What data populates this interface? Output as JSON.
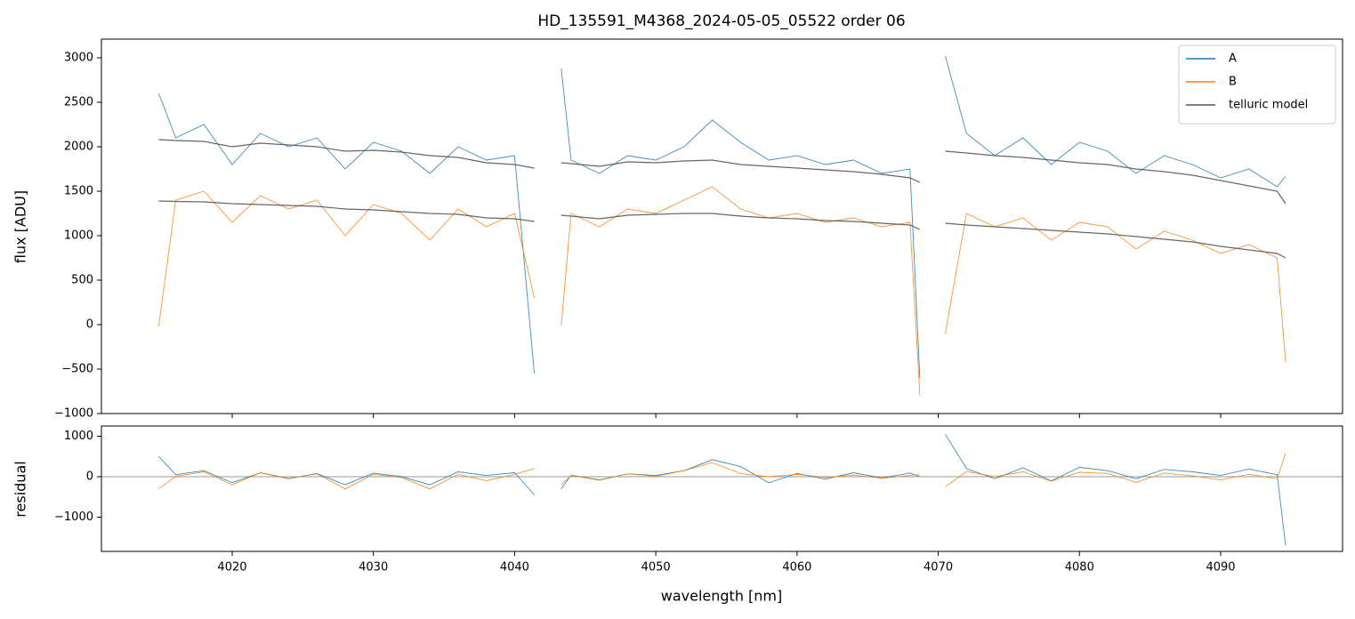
{
  "chart_data": [
    {
      "type": "line",
      "title": "HD_135591_M4368_2024-05-05_05522  order 06",
      "y_label": "flux [ADU]",
      "x": [
        4014.8,
        4016,
        4018,
        4020,
        4022,
        4024,
        4026,
        4028,
        4030,
        4032,
        4034,
        4036,
        4038,
        4040,
        4041.4,
        4042.3,
        4043.3,
        4044,
        4046,
        4048,
        4050,
        4052,
        4054,
        4056,
        4058,
        4060,
        4062,
        4064,
        4066,
        4068,
        4068.7,
        4069.6,
        4070.5,
        4072,
        4074,
        4076,
        4078,
        4080,
        4082,
        4084,
        4086,
        4088,
        4090,
        4092,
        4094,
        4094.6
      ],
      "series": [
        {
          "name": "A",
          "color": "#1f77b4",
          "values": [
            2600,
            2100,
            2250,
            1800,
            2150,
            2000,
            2100,
            1750,
            2050,
            1950,
            1700,
            2000,
            1850,
            1900,
            -550,
            null,
            2880,
            1850,
            1700,
            1900,
            1850,
            2000,
            2300,
            2050,
            1850,
            1900,
            1800,
            1850,
            1700,
            1750,
            -600,
            null,
            3020,
            2150,
            1900,
            2100,
            1800,
            2050,
            1950,
            1700,
            1900,
            1800,
            1650,
            1750,
            1550,
            1670
          ]
        },
        {
          "name": "B",
          "color": "#ff7f0e",
          "values": [
            -20,
            1400,
            1500,
            1150,
            1450,
            1300,
            1400,
            1000,
            1350,
            1250,
            950,
            1300,
            1100,
            1250,
            300,
            null,
            -10,
            1250,
            1100,
            1300,
            1250,
            1400,
            1550,
            1300,
            1200,
            1250,
            1150,
            1200,
            1100,
            1150,
            -800,
            null,
            -100,
            1250,
            1100,
            1200,
            950,
            1150,
            1100,
            850,
            1050,
            950,
            800,
            900,
            750,
            -420
          ]
        },
        {
          "name": "telluric model",
          "color": "#555555",
          "values": [
            2080,
            2070,
            2060,
            2000,
            2040,
            2020,
            2000,
            1950,
            1960,
            1940,
            1900,
            1880,
            1820,
            1800,
            1760,
            null,
            1820,
            1810,
            1780,
            1830,
            1820,
            1840,
            1850,
            1800,
            1780,
            1760,
            1740,
            1720,
            1690,
            1650,
            1600,
            null,
            1950,
            1930,
            1900,
            1880,
            1850,
            1820,
            1800,
            1750,
            1720,
            1680,
            1620,
            1560,
            1500,
            1360
          ]
        },
        {
          "color": "#555555",
          "values": [
            1390,
            1385,
            1380,
            1360,
            1350,
            1340,
            1330,
            1300,
            1290,
            1270,
            1250,
            1240,
            1200,
            1190,
            1160,
            null,
            1230,
            1220,
            1190,
            1230,
            1240,
            1250,
            1250,
            1220,
            1200,
            1190,
            1170,
            1160,
            1140,
            1120,
            1070,
            null,
            1140,
            1120,
            1100,
            1080,
            1060,
            1040,
            1020,
            990,
            960,
            930,
            880,
            840,
            800,
            750
          ]
        }
      ],
      "xlim": [
        4010.74,
        4098.63
      ],
      "ylim": [
        -1000,
        3210
      ],
      "yticks": [
        {
          "value": -1000,
          "label": "−1000"
        },
        {
          "value": -500,
          "label": "−500"
        },
        0,
        500,
        1000,
        1500,
        2000,
        2500,
        3000
      ],
      "legend": "upper right"
    },
    {
      "type": "line",
      "x_label": "wavelength [nm]",
      "y_label": "residual",
      "x": [
        4014.8,
        4016,
        4018,
        4020,
        4022,
        4024,
        4026,
        4028,
        4030,
        4032,
        4034,
        4036,
        4038,
        4040,
        4041.4,
        4042.3,
        4043.3,
        4044,
        4046,
        4048,
        4050,
        4052,
        4054,
        4056,
        4058,
        4060,
        4062,
        4064,
        4066,
        4068,
        4068.7,
        4069.6,
        4070.5,
        4072,
        4074,
        4076,
        4078,
        4080,
        4082,
        4084,
        4086,
        4088,
        4090,
        4092,
        4094,
        4094.6
      ],
      "series": [
        {
          "color": "#1f77b4",
          "values": [
            500,
            50,
            150,
            -150,
            100,
            -50,
            80,
            -200,
            90,
            0,
            -200,
            120,
            30,
            100,
            -450,
            null,
            -300,
            40,
            -80,
            70,
            30,
            150,
            420,
            250,
            -150,
            80,
            -60,
            100,
            -30,
            90,
            0,
            null,
            1050,
            200,
            -50,
            220,
            -100,
            230,
            150,
            -50,
            180,
            120,
            30,
            190,
            50,
            -1700
          ]
        },
        {
          "color": "#ff7f0e",
          "values": [
            -300,
            10,
            120,
            -200,
            100,
            -40,
            70,
            -300,
            60,
            -20,
            -300,
            60,
            -100,
            60,
            200,
            null,
            -200,
            30,
            -90,
            70,
            10,
            150,
            350,
            80,
            0,
            60,
            -20,
            40,
            -40,
            30,
            50,
            null,
            -250,
            130,
            0,
            120,
            -110,
            110,
            80,
            -140,
            90,
            20,
            -80,
            60,
            -50,
            580
          ]
        }
      ],
      "reference_line": 0,
      "xlim": [
        4010.74,
        4098.63
      ],
      "ylim": [
        -1846,
        1253
      ],
      "xticks": [
        4020,
        4030,
        4040,
        4050,
        4060,
        4070,
        4080,
        4090
      ],
      "yticks": [
        {
          "value": -1000,
          "label": "−1000"
        },
        0,
        1000
      ]
    }
  ]
}
